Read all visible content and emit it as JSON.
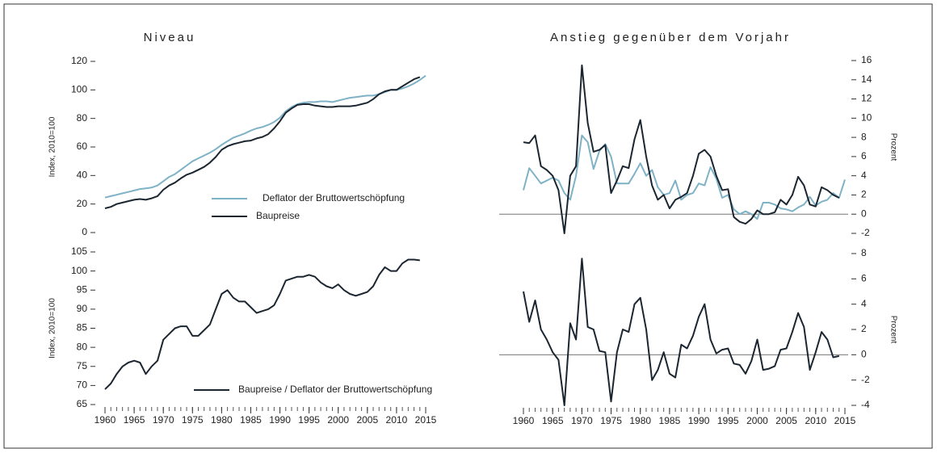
{
  "chart_data": [
    {
      "type": "line",
      "title": "Niveau",
      "ylabel": "Index, 2010=100",
      "yaxis_side": "left",
      "xlim": [
        1960,
        2015
      ],
      "ylim": [
        0,
        120
      ],
      "yticks": [
        0,
        20,
        40,
        60,
        80,
        100,
        120
      ],
      "legend": "inside",
      "x": [
        1960,
        1961,
        1962,
        1963,
        1964,
        1965,
        1966,
        1967,
        1968,
        1969,
        1970,
        1971,
        1972,
        1973,
        1974,
        1975,
        1976,
        1977,
        1978,
        1979,
        1980,
        1981,
        1982,
        1983,
        1984,
        1985,
        1986,
        1987,
        1988,
        1989,
        1990,
        1991,
        1992,
        1993,
        1994,
        1995,
        1996,
        1997,
        1998,
        1999,
        2000,
        2001,
        2002,
        2003,
        2004,
        2005,
        2006,
        2007,
        2008,
        2009,
        2010,
        2011,
        2012,
        2013,
        2014,
        2015
      ],
      "series": [
        {
          "name": "Deflator der Bruttowertschöpfung",
          "color": "#7fb2c6",
          "values": [
            24.5,
            25.5,
            26.5,
            27.5,
            28.5,
            29.5,
            30.5,
            31,
            31.5,
            33,
            36,
            39,
            41,
            44,
            47,
            50,
            52,
            54,
            56,
            58.5,
            61.5,
            64,
            66.5,
            68,
            69.5,
            71.5,
            73,
            74,
            75.5,
            77.5,
            80.5,
            85,
            88,
            90,
            91,
            91.5,
            91.5,
            92,
            92,
            91.5,
            92.5,
            93.5,
            94.5,
            95,
            95.5,
            96,
            96,
            97,
            98.5,
            100,
            100,
            101,
            102.5,
            104.5,
            107,
            110
          ]
        },
        {
          "name": "Baupreise",
          "color": "#1b2631",
          "values": [
            17,
            18,
            20,
            21,
            22,
            23,
            23.5,
            23,
            24,
            25.5,
            30,
            33,
            35,
            38,
            40.5,
            42,
            44,
            46,
            49,
            53,
            58,
            60.5,
            62,
            63,
            64,
            64.5,
            66,
            67,
            69,
            73,
            78,
            84,
            87,
            89.5,
            90,
            90,
            89,
            88.5,
            88,
            88,
            88.5,
            88.5,
            88.5,
            89,
            90,
            91,
            93.5,
            97,
            99,
            100,
            100,
            102.5,
            105,
            107.5,
            109,
            null
          ]
        }
      ]
    },
    {
      "type": "line",
      "ylabel": "Index, 2010=100",
      "yaxis_side": "left",
      "xlim": [
        1960,
        2015
      ],
      "xticks": [
        1960,
        1965,
        1970,
        1975,
        1980,
        1985,
        1990,
        1995,
        2000,
        2005,
        2010,
        2015
      ],
      "ylim": [
        65,
        105
      ],
      "yticks": [
        65,
        70,
        75,
        80,
        85,
        90,
        95,
        100,
        105
      ],
      "legend": "inside",
      "x": [
        1960,
        1961,
        1962,
        1963,
        1964,
        1965,
        1966,
        1967,
        1968,
        1969,
        1970,
        1971,
        1972,
        1973,
        1974,
        1975,
        1976,
        1977,
        1978,
        1979,
        1980,
        1981,
        1982,
        1983,
        1984,
        1985,
        1986,
        1987,
        1988,
        1989,
        1990,
        1991,
        1992,
        1993,
        1994,
        1995,
        1996,
        1997,
        1998,
        1999,
        2000,
        2001,
        2002,
        2003,
        2004,
        2005,
        2006,
        2007,
        2008,
        2009,
        2010,
        2011,
        2012,
        2013,
        2014,
        2015
      ],
      "series": [
        {
          "name": "Baupreise / Deflator der Bruttowertschöpfung",
          "color": "#1b2631",
          "values": [
            69,
            70.5,
            73,
            75,
            76,
            76.5,
            76,
            73,
            75,
            76.5,
            82,
            83.5,
            85,
            85.5,
            85.5,
            83,
            83,
            84.5,
            86,
            90,
            94,
            95,
            93,
            92,
            92,
            90.5,
            89,
            89.5,
            90,
            91,
            94,
            97.5,
            98,
            98.5,
            98.5,
            99,
            98.5,
            97,
            96,
            95.5,
            96.5,
            95,
            94,
            93.5,
            94,
            94.5,
            96,
            99,
            101,
            100,
            100,
            102,
            103,
            103,
            102.8,
            null
          ]
        }
      ]
    },
    {
      "type": "line",
      "title": "Anstieg gegenüber dem Vorjahr",
      "ylabel": "Prozent",
      "yaxis_side": "right",
      "hline": 0,
      "xlim": [
        1960,
        2015
      ],
      "ylim": [
        -2,
        16
      ],
      "yticks": [
        -2,
        0,
        2,
        4,
        6,
        8,
        10,
        12,
        14,
        16
      ],
      "x": [
        1960,
        1961,
        1962,
        1963,
        1964,
        1965,
        1966,
        1967,
        1968,
        1969,
        1970,
        1971,
        1972,
        1973,
        1974,
        1975,
        1976,
        1977,
        1978,
        1979,
        1980,
        1981,
        1982,
        1983,
        1984,
        1985,
        1986,
        1987,
        1988,
        1989,
        1990,
        1991,
        1992,
        1993,
        1994,
        1995,
        1996,
        1997,
        1998,
        1999,
        2000,
        2001,
        2002,
        2003,
        2004,
        2005,
        2006,
        2007,
        2008,
        2009,
        2010,
        2011,
        2012,
        2013,
        2014,
        2015
      ],
      "series": [
        {
          "name": "Deflator der Bruttowertschöpfung",
          "color": "#7fb2c6",
          "values": [
            2.5,
            4.8,
            4,
            3.2,
            3.5,
            3.8,
            3.5,
            2.2,
            1.5,
            4,
            8.2,
            7.5,
            4.7,
            6.6,
            7.3,
            6,
            3.2,
            3.2,
            3.2,
            4.2,
            5.3,
            4,
            4.6,
            2.8,
            2,
            2.2,
            3.5,
            1.5,
            2,
            2.2,
            3.2,
            3,
            4.9,
            3.7,
            1.7,
            2,
            0.5,
            0,
            0.3,
            0,
            -0.5,
            1.2,
            1.2,
            1,
            0.6,
            0.5,
            0.3,
            0.7,
            1,
            1.8,
            0.9,
            1.3,
            1.5,
            2.2,
            1.7,
            3.6
          ]
        },
        {
          "name": "Baupreise",
          "color": "#1b2631",
          "values": [
            7.5,
            7.4,
            8.2,
            5,
            4.6,
            4,
            2.5,
            -2,
            4,
            5,
            15.5,
            9.5,
            6.5,
            6.7,
            7.2,
            2.2,
            3.5,
            5,
            4.8,
            7.8,
            9.8,
            6,
            3,
            1.5,
            2,
            0.6,
            1.5,
            1.8,
            2.2,
            4,
            6.3,
            6.7,
            6,
            4,
            2.5,
            2.6,
            -0.3,
            -0.8,
            -1,
            -0.5,
            0.4,
            0,
            0,
            0.2,
            1.5,
            1,
            2,
            3.9,
            3,
            1,
            0.8,
            2.8,
            2.5,
            2,
            1.7,
            null
          ]
        }
      ]
    },
    {
      "type": "line",
      "ylabel": "Prozent",
      "yaxis_side": "right",
      "hline": 0,
      "xlim": [
        1960,
        2015
      ],
      "xticks": [
        1960,
        1965,
        1970,
        1975,
        1980,
        1985,
        1990,
        1995,
        2000,
        2005,
        2010,
        2015
      ],
      "ylim": [
        -4,
        8
      ],
      "yticks": [
        -4,
        -2,
        0,
        2,
        4,
        6,
        8
      ],
      "x": [
        1960,
        1961,
        1962,
        1963,
        1964,
        1965,
        1966,
        1967,
        1968,
        1969,
        1970,
        1971,
        1972,
        1973,
        1974,
        1975,
        1976,
        1977,
        1978,
        1979,
        1980,
        1981,
        1982,
        1983,
        1984,
        1985,
        1986,
        1987,
        1988,
        1989,
        1990,
        1991,
        1992,
        1993,
        1994,
        1995,
        1996,
        1997,
        1998,
        1999,
        2000,
        2001,
        2002,
        2003,
        2004,
        2005,
        2006,
        2007,
        2008,
        2009,
        2010,
        2011,
        2012,
        2013,
        2014,
        2015
      ],
      "series": [
        {
          "name": "Baupreise / Deflator der Bruttowertschöpfung",
          "color": "#1b2631",
          "values": [
            5,
            2.6,
            4.3,
            2,
            1.2,
            0.2,
            -0.4,
            -4,
            2.5,
            1.2,
            7.6,
            2.2,
            2,
            0.3,
            0.2,
            -3.7,
            0.2,
            2,
            1.8,
            4,
            4.5,
            2,
            -2,
            -1.2,
            0.2,
            -1.5,
            -1.8,
            0.8,
            0.5,
            1.5,
            3,
            4,
            1.2,
            0.1,
            0.4,
            0.5,
            -0.7,
            -0.8,
            -1.5,
            -0.5,
            1.2,
            -1.2,
            -1.1,
            -0.9,
            0.4,
            0.5,
            1.8,
            3.3,
            2.2,
            -1.2,
            0.2,
            1.8,
            1.2,
            -0.2,
            -0.1,
            null
          ]
        }
      ]
    }
  ]
}
